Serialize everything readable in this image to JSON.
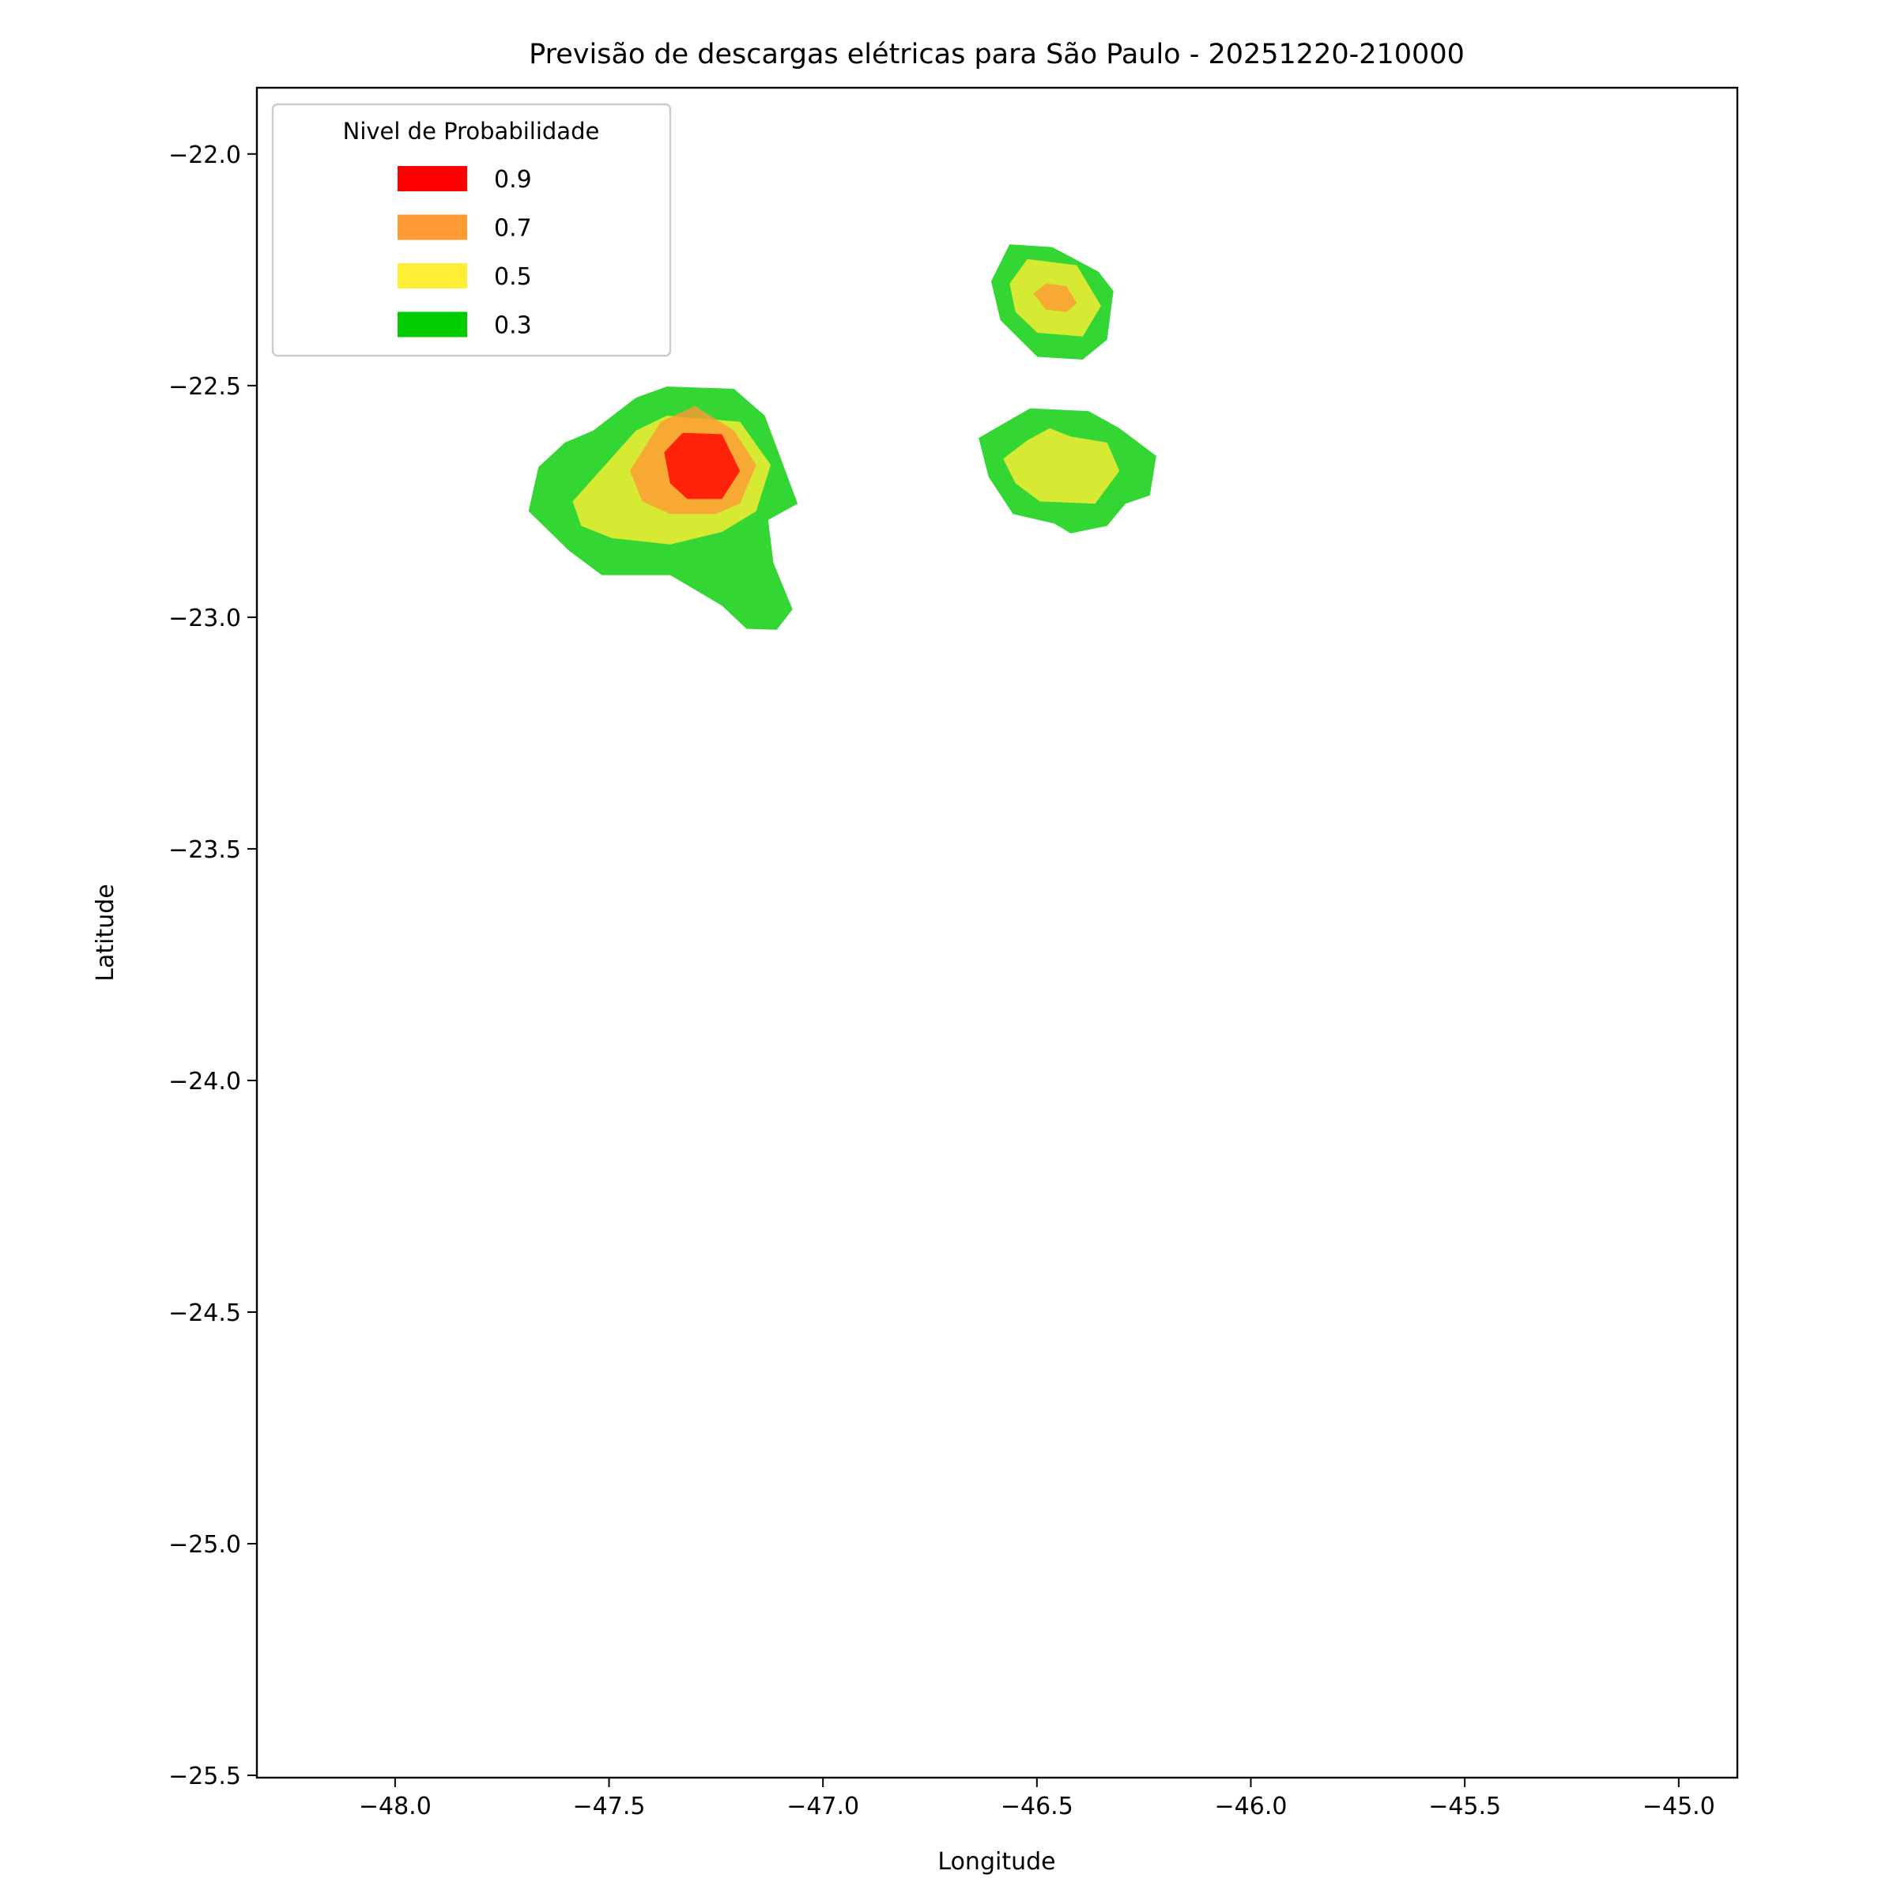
{
  "chart_data": {
    "type": "contour",
    "title": "Previsão de descargas elétricas para São Paulo - 20251220-210000",
    "xlabel": "Longitude",
    "ylabel": "Latitude",
    "xlim": [
      -48.323,
      -44.863
    ],
    "ylim": [
      -25.505,
      -21.857
    ],
    "xticks": [
      {
        "value": -48.0,
        "label": "−48.0"
      },
      {
        "value": -47.5,
        "label": "−47.5"
      },
      {
        "value": -47.0,
        "label": "−47.0"
      },
      {
        "value": -46.5,
        "label": "−46.5"
      },
      {
        "value": -46.0,
        "label": "−46.0"
      },
      {
        "value": -45.5,
        "label": "−45.5"
      },
      {
        "value": -45.0,
        "label": "−45.0"
      }
    ],
    "yticks": [
      {
        "value": -22.0,
        "label": "−22.0"
      },
      {
        "value": -22.5,
        "label": "−22.5"
      },
      {
        "value": -23.0,
        "label": "−23.0"
      },
      {
        "value": -23.5,
        "label": "−23.5"
      },
      {
        "value": -24.0,
        "label": "−24.0"
      },
      {
        "value": -24.5,
        "label": "−24.5"
      },
      {
        "value": -25.0,
        "label": "−25.0"
      },
      {
        "value": -25.5,
        "label": "−25.5"
      }
    ],
    "grid": false,
    "legend_title": "Nivel de Probabilidade",
    "legend": "upper left",
    "series": [
      {
        "name": "0.9",
        "color": "#ff0000",
        "polygons": [
          {
            "x": [
              -47.371,
              -47.328,
              -47.236,
              -47.194,
              -47.236,
              -47.317,
              -47.357
            ],
            "y": [
              -22.644,
              -22.602,
              -22.605,
              -22.684,
              -22.745,
              -22.745,
              -22.711
            ]
          }
        ]
      },
      {
        "name": "0.7",
        "color": "#ff9933",
        "polygons": [
          {
            "x": [
              -47.451,
              -47.379,
              -47.299,
              -47.208,
              -47.156,
              -47.194,
              -47.251,
              -47.357,
              -47.422
            ],
            "y": [
              -22.684,
              -22.578,
              -22.544,
              -22.597,
              -22.671,
              -22.755,
              -22.777,
              -22.777,
              -22.75
            ]
          },
          {
            "x": [
              -46.508,
              -46.479,
              -46.431,
              -46.407,
              -46.431,
              -46.479
            ],
            "y": [
              -22.301,
              -22.28,
              -22.285,
              -22.322,
              -22.341,
              -22.336
            ]
          }
        ]
      },
      {
        "name": "0.5",
        "color": "#ffee33",
        "polygons": [
          {
            "x": [
              -47.585,
              -47.437,
              -47.365,
              -47.194,
              -47.122,
              -47.156,
              -47.236,
              -47.357,
              -47.494,
              -47.565
            ],
            "y": [
              -22.75,
              -22.597,
              -22.565,
              -22.578,
              -22.671,
              -22.771,
              -22.816,
              -22.843,
              -22.829,
              -22.803
            ]
          },
          {
            "x": [
              -46.564,
              -46.522,
              -46.407,
              -46.35,
              -46.393,
              -46.499,
              -46.55
            ],
            "y": [
              -22.28,
              -22.227,
              -22.24,
              -22.328,
              -22.394,
              -22.386,
              -22.341
            ]
          },
          {
            "x": [
              -46.579,
              -46.522,
              -46.47,
              -46.421,
              -46.336,
              -46.307,
              -46.364,
              -46.493,
              -46.55
            ],
            "y": [
              -22.658,
              -22.618,
              -22.592,
              -22.61,
              -22.623,
              -22.684,
              -22.755,
              -22.75,
              -22.711
            ]
          }
        ]
      },
      {
        "name": "0.3",
        "color": "#00cc00",
        "polygons": [
          {
            "x": [
              -47.688,
              -47.665,
              -47.603,
              -47.537,
              -47.437,
              -47.365,
              -47.208,
              -47.136,
              -47.059,
              -47.128,
              -47.116,
              -47.071,
              -47.108,
              -47.179,
              -47.236,
              -47.357,
              -47.517,
              -47.594
            ],
            "y": [
              -22.771,
              -22.676,
              -22.623,
              -22.597,
              -22.526,
              -22.502,
              -22.507,
              -22.565,
              -22.755,
              -22.79,
              -22.882,
              -22.983,
              -23.027,
              -23.025,
              -22.975,
              -22.909,
              -22.909,
              -22.856
            ]
          },
          {
            "x": [
              -46.607,
              -46.564,
              -46.464,
              -46.356,
              -46.321,
              -46.336,
              -46.393,
              -46.499,
              -46.585
            ],
            "y": [
              -22.275,
              -22.195,
              -22.201,
              -22.254,
              -22.296,
              -22.401,
              -22.444,
              -22.438,
              -22.359
            ]
          },
          {
            "x": [
              -46.636,
              -46.516,
              -46.379,
              -46.307,
              -46.221,
              -46.236,
              -46.293,
              -46.336,
              -46.421,
              -46.459,
              -46.556,
              -46.613
            ],
            "y": [
              -22.613,
              -22.549,
              -22.555,
              -22.592,
              -22.652,
              -22.737,
              -22.755,
              -22.803,
              -22.819,
              -22.798,
              -22.777,
              -22.697
            ]
          }
        ]
      }
    ]
  }
}
